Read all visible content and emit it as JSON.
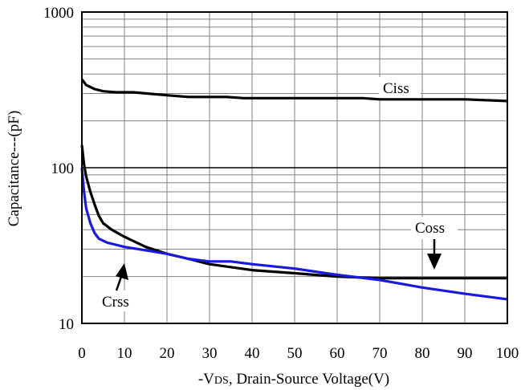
{
  "chart_data": {
    "type": "line",
    "xlabel_parts": [
      "-V",
      "DS",
      ", Drain-Source Voltage(V)"
    ],
    "ylabel": "Capacitance---(pF)",
    "xlim": [
      0,
      100
    ],
    "ylim": [
      10,
      1000
    ],
    "y_scale": "log",
    "grid": true,
    "x_ticks": [
      0,
      10,
      20,
      30,
      40,
      50,
      60,
      70,
      80,
      90,
      100
    ],
    "y_ticks": [
      10,
      100,
      1000
    ],
    "series": [
      {
        "name": "Ciss",
        "color": "#000000",
        "x": [
          0,
          1,
          3,
          5,
          8,
          12,
          15,
          20,
          25,
          30,
          34,
          38,
          45,
          50,
          55,
          60,
          66,
          70,
          80,
          90,
          100
        ],
        "y": [
          370,
          340,
          320,
          310,
          305,
          305,
          300,
          292,
          285,
          285,
          285,
          280,
          280,
          280,
          280,
          280,
          280,
          275,
          275,
          275,
          268
        ]
      },
      {
        "name": "Coss",
        "color": "#000000",
        "x": [
          0,
          0.5,
          1,
          2,
          3,
          4,
          5,
          7,
          10,
          15,
          20,
          25,
          30,
          40,
          50,
          60,
          70,
          80,
          90,
          100
        ],
        "y": [
          140,
          105,
          88,
          70,
          58,
          49,
          44,
          40,
          36,
          31,
          28,
          26,
          24,
          22,
          21,
          20,
          19.5,
          19.5,
          19.5,
          19.5
        ]
      },
      {
        "name": "Crss",
        "color": "#1a1adc",
        "x": [
          0,
          0.5,
          1,
          2,
          3,
          4,
          6,
          8,
          10,
          15,
          20,
          25,
          30,
          35,
          40,
          50,
          60,
          70,
          80,
          90,
          100
        ],
        "y": [
          100,
          70,
          55,
          44,
          38,
          35,
          33,
          32,
          31,
          29.5,
          28,
          26,
          25,
          25,
          24,
          22.5,
          20.5,
          19,
          17,
          15.5,
          14.3
        ]
      }
    ]
  }
}
